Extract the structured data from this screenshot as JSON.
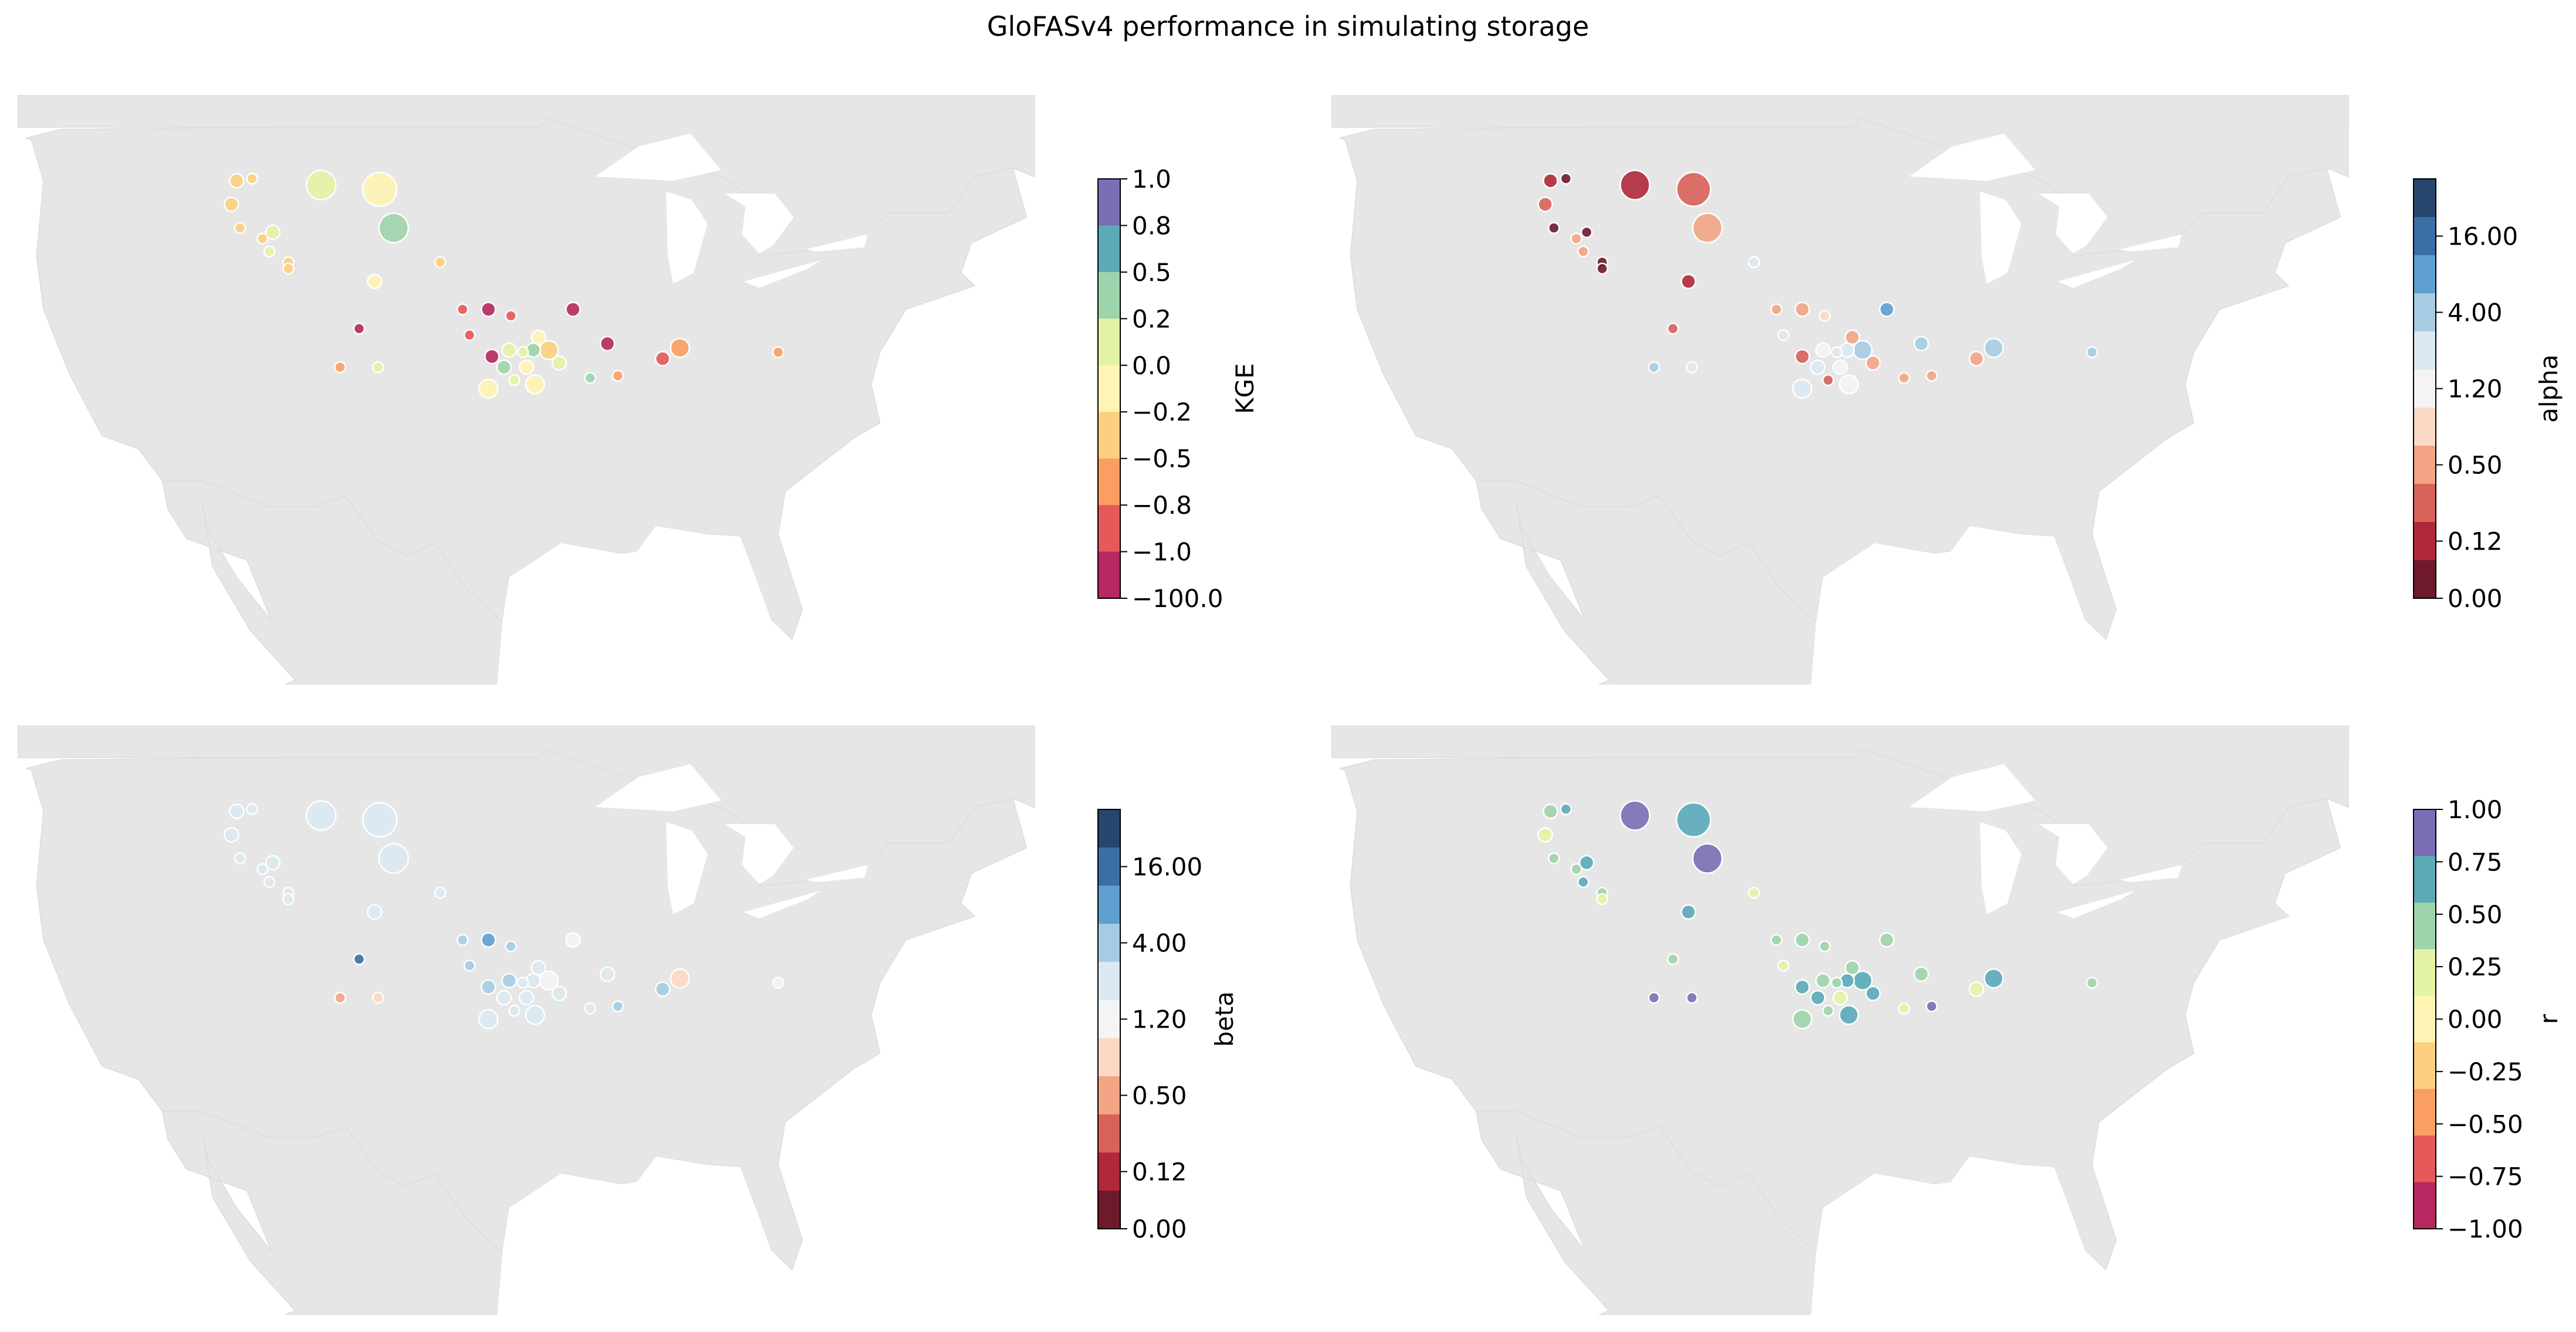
{
  "title": "GloFASv4 performance in simulating storage",
  "colors": {
    "land": "#e6e6e6",
    "water": "#ffffff",
    "marker_edge": "#ffffff"
  },
  "panels": [
    {
      "id": "kge",
      "label": "KGE",
      "ticks": [
        "1.0",
        "0.8",
        "0.5",
        "0.2",
        "0.0",
        "−0.2",
        "−0.5",
        "−0.8",
        "−1.0",
        "−100.0"
      ],
      "colors": [
        "#7b6eb6",
        "#5aaab8",
        "#9ed4ab",
        "#e3f3a5",
        "#fff4b4",
        "#fcd081",
        "#fa9e62",
        "#e6585a",
        "#b6285f"
      ],
      "points": [
        {
          "lon": -112.8,
          "lat": 46.5,
          "v": 5,
          "s": 2
        },
        {
          "lon": -111.9,
          "lat": 46.6,
          "v": 5,
          "s": 1
        },
        {
          "lon": -107.9,
          "lat": 46.3,
          "v": 3,
          "s": 6
        },
        {
          "lon": -113.1,
          "lat": 45.4,
          "v": 5,
          "s": 2
        },
        {
          "lon": -110.7,
          "lat": 44.1,
          "v": 3,
          "s": 2
        },
        {
          "lon": -112.6,
          "lat": 44.3,
          "v": 5,
          "s": 1
        },
        {
          "lon": -111.3,
          "lat": 43.8,
          "v": 5,
          "s": 1
        },
        {
          "lon": -110.9,
          "lat": 43.2,
          "v": 3,
          "s": 1
        },
        {
          "lon": -109.8,
          "lat": 42.7,
          "v": 5,
          "s": 1
        },
        {
          "lon": -109.8,
          "lat": 42.4,
          "v": 5,
          "s": 1
        },
        {
          "lon": -104.5,
          "lat": 46.1,
          "v": 4,
          "s": 7
        },
        {
          "lon": -103.7,
          "lat": 44.3,
          "v": 2,
          "s": 6
        },
        {
          "lon": -101.0,
          "lat": 42.7,
          "v": 5,
          "s": 1
        },
        {
          "lon": -104.8,
          "lat": 41.8,
          "v": 4,
          "s": 2
        },
        {
          "lon": -99.7,
          "lat": 40.5,
          "v": 7,
          "s": 1
        },
        {
          "lon": -98.2,
          "lat": 40.5,
          "v": 8,
          "s": 2
        },
        {
          "lon": -96.9,
          "lat": 40.2,
          "v": 7,
          "s": 1
        },
        {
          "lon": -93.3,
          "lat": 40.5,
          "v": 8,
          "s": 2
        },
        {
          "lon": -105.7,
          "lat": 39.6,
          "v": 8,
          "s": 1
        },
        {
          "lon": -99.3,
          "lat": 39.3,
          "v": 7,
          "s": 1
        },
        {
          "lon": -95.3,
          "lat": 39.2,
          "v": 4,
          "s": 2
        },
        {
          "lon": -91.3,
          "lat": 38.9,
          "v": 8,
          "s": 2
        },
        {
          "lon": -87.1,
          "lat": 38.7,
          "v": 6,
          "s": 3
        },
        {
          "lon": -81.4,
          "lat": 38.5,
          "v": 6,
          "s": 1
        },
        {
          "lon": -97.0,
          "lat": 38.6,
          "v": 3,
          "s": 2
        },
        {
          "lon": -95.6,
          "lat": 38.6,
          "v": 2,
          "s": 2
        },
        {
          "lon": -94.7,
          "lat": 38.6,
          "v": 5,
          "s": 3
        },
        {
          "lon": -98.0,
          "lat": 38.3,
          "v": 8,
          "s": 2
        },
        {
          "lon": -96.2,
          "lat": 38.5,
          "v": 3,
          "s": 1
        },
        {
          "lon": -94.1,
          "lat": 38.0,
          "v": 3,
          "s": 2
        },
        {
          "lon": -88.1,
          "lat": 38.2,
          "v": 7,
          "s": 2
        },
        {
          "lon": -106.8,
          "lat": 37.8,
          "v": 6,
          "s": 1
        },
        {
          "lon": -104.6,
          "lat": 37.8,
          "v": 3,
          "s": 1
        },
        {
          "lon": -97.3,
          "lat": 37.8,
          "v": 2,
          "s": 2
        },
        {
          "lon": -96.0,
          "lat": 37.8,
          "v": 4,
          "s": 2
        },
        {
          "lon": -90.7,
          "lat": 37.4,
          "v": 6,
          "s": 1
        },
        {
          "lon": -92.3,
          "lat": 37.3,
          "v": 2,
          "s": 1
        },
        {
          "lon": -96.7,
          "lat": 37.2,
          "v": 3,
          "s": 1
        },
        {
          "lon": -98.2,
          "lat": 36.8,
          "v": 4,
          "s": 3
        },
        {
          "lon": -95.5,
          "lat": 37.0,
          "v": 4,
          "s": 3
        }
      ]
    },
    {
      "id": "alpha",
      "label": "alpha",
      "ticks": [
        "16.00",
        "4.00",
        "1.20",
        "0.50",
        "0.12",
        "0.00"
      ],
      "colors": [
        "#26466d",
        "#3b6ea5",
        "#5e9fcf",
        "#a6cce3",
        "#dbe9f2",
        "#f4f4f4",
        "#fbd9c4",
        "#f2a485",
        "#d86259",
        "#b0283a",
        "#6e1a2c"
      ],
      "points": [
        {
          "lon": -112.8,
          "lat": 46.5,
          "v": 9,
          "s": 2
        },
        {
          "lon": -111.9,
          "lat": 46.6,
          "v": 10,
          "s": 1
        },
        {
          "lon": -107.9,
          "lat": 46.3,
          "v": 9,
          "s": 6
        },
        {
          "lon": -113.1,
          "lat": 45.4,
          "v": 8,
          "s": 2
        },
        {
          "lon": -110.7,
          "lat": 44.1,
          "v": 10,
          "s": 1
        },
        {
          "lon": -112.6,
          "lat": 44.3,
          "v": 10,
          "s": 1
        },
        {
          "lon": -111.3,
          "lat": 43.8,
          "v": 7,
          "s": 1
        },
        {
          "lon": -110.9,
          "lat": 43.2,
          "v": 7,
          "s": 1
        },
        {
          "lon": -109.8,
          "lat": 42.7,
          "v": 10,
          "s": 1
        },
        {
          "lon": -109.8,
          "lat": 42.4,
          "v": 10,
          "s": 1
        },
        {
          "lon": -104.5,
          "lat": 46.1,
          "v": 8,
          "s": 7
        },
        {
          "lon": -103.7,
          "lat": 44.3,
          "v": 7,
          "s": 6
        },
        {
          "lon": -101.0,
          "lat": 42.7,
          "v": 4,
          "s": 1
        },
        {
          "lon": -104.8,
          "lat": 41.8,
          "v": 9,
          "s": 2
        },
        {
          "lon": -99.7,
          "lat": 40.5,
          "v": 7,
          "s": 1
        },
        {
          "lon": -98.2,
          "lat": 40.5,
          "v": 7,
          "s": 2
        },
        {
          "lon": -96.9,
          "lat": 40.2,
          "v": 6,
          "s": 1
        },
        {
          "lon": -93.3,
          "lat": 40.5,
          "v": 2,
          "s": 2
        },
        {
          "lon": -105.7,
          "lat": 39.6,
          "v": 8,
          "s": 1
        },
        {
          "lon": -99.3,
          "lat": 39.3,
          "v": 4,
          "s": 1
        },
        {
          "lon": -95.3,
          "lat": 39.2,
          "v": 7,
          "s": 2
        },
        {
          "lon": -91.3,
          "lat": 38.9,
          "v": 3,
          "s": 2
        },
        {
          "lon": -87.1,
          "lat": 38.7,
          "v": 3,
          "s": 3
        },
        {
          "lon": -81.4,
          "lat": 38.5,
          "v": 3,
          "s": 1
        },
        {
          "lon": -97.0,
          "lat": 38.6,
          "v": 5,
          "s": 2
        },
        {
          "lon": -95.6,
          "lat": 38.6,
          "v": 4,
          "s": 2
        },
        {
          "lon": -94.7,
          "lat": 38.6,
          "v": 3,
          "s": 3
        },
        {
          "lon": -98.2,
          "lat": 38.3,
          "v": 8,
          "s": 2
        },
        {
          "lon": -96.2,
          "lat": 38.5,
          "v": 4,
          "s": 1
        },
        {
          "lon": -94.1,
          "lat": 38.0,
          "v": 7,
          "s": 2
        },
        {
          "lon": -88.1,
          "lat": 38.2,
          "v": 7,
          "s": 2
        },
        {
          "lon": -106.8,
          "lat": 37.8,
          "v": 3,
          "s": 1
        },
        {
          "lon": -104.6,
          "lat": 37.8,
          "v": 4,
          "s": 1
        },
        {
          "lon": -97.3,
          "lat": 37.8,
          "v": 4,
          "s": 2
        },
        {
          "lon": -96.0,
          "lat": 37.8,
          "v": 5,
          "s": 2
        },
        {
          "lon": -90.7,
          "lat": 37.4,
          "v": 7,
          "s": 1
        },
        {
          "lon": -92.3,
          "lat": 37.3,
          "v": 7,
          "s": 1
        },
        {
          "lon": -96.7,
          "lat": 37.2,
          "v": 8,
          "s": 1
        },
        {
          "lon": -98.2,
          "lat": 36.8,
          "v": 4,
          "s": 3
        },
        {
          "lon": -95.5,
          "lat": 37.0,
          "v": 5,
          "s": 3
        }
      ]
    },
    {
      "id": "beta",
      "label": "beta",
      "ticks": [
        "16.00",
        "4.00",
        "1.20",
        "0.50",
        "0.12",
        "0.00"
      ],
      "colors": [
        "#26466d",
        "#3b6ea5",
        "#5e9fcf",
        "#a6cce3",
        "#dbe9f2",
        "#f4f4f4",
        "#fbd9c4",
        "#f2a485",
        "#d86259",
        "#b0283a",
        "#6e1a2c"
      ],
      "points": [
        {
          "lon": -112.8,
          "lat": 46.5,
          "v": 4,
          "s": 2
        },
        {
          "lon": -111.9,
          "lat": 46.6,
          "v": 4,
          "s": 1
        },
        {
          "lon": -107.9,
          "lat": 46.3,
          "v": 4,
          "s": 6
        },
        {
          "lon": -113.1,
          "lat": 45.4,
          "v": 4,
          "s": 2
        },
        {
          "lon": -110.7,
          "lat": 44.1,
          "v": 4,
          "s": 2
        },
        {
          "lon": -112.6,
          "lat": 44.3,
          "v": 4,
          "s": 1
        },
        {
          "lon": -111.3,
          "lat": 43.8,
          "v": 4,
          "s": 1
        },
        {
          "lon": -110.9,
          "lat": 43.2,
          "v": 4,
          "s": 1
        },
        {
          "lon": -109.8,
          "lat": 42.7,
          "v": 4,
          "s": 1
        },
        {
          "lon": -109.8,
          "lat": 42.4,
          "v": 4,
          "s": 1
        },
        {
          "lon": -104.5,
          "lat": 46.1,
          "v": 4,
          "s": 7
        },
        {
          "lon": -103.7,
          "lat": 44.3,
          "v": 4,
          "s": 6
        },
        {
          "lon": -101.0,
          "lat": 42.7,
          "v": 4,
          "s": 1
        },
        {
          "lon": -104.8,
          "lat": 41.8,
          "v": 4,
          "s": 2
        },
        {
          "lon": -99.7,
          "lat": 40.5,
          "v": 3,
          "s": 1
        },
        {
          "lon": -98.2,
          "lat": 40.5,
          "v": 2,
          "s": 2
        },
        {
          "lon": -96.9,
          "lat": 40.2,
          "v": 3,
          "s": 1
        },
        {
          "lon": -93.3,
          "lat": 40.5,
          "v": 5,
          "s": 2
        },
        {
          "lon": -105.7,
          "lat": 39.6,
          "v": 1,
          "s": 1
        },
        {
          "lon": -99.3,
          "lat": 39.3,
          "v": 3,
          "s": 1
        },
        {
          "lon": -95.3,
          "lat": 39.2,
          "v": 4,
          "s": 2
        },
        {
          "lon": -91.3,
          "lat": 38.9,
          "v": 4,
          "s": 2
        },
        {
          "lon": -87.1,
          "lat": 38.7,
          "v": 6,
          "s": 3
        },
        {
          "lon": -81.4,
          "lat": 38.5,
          "v": 5,
          "s": 1
        },
        {
          "lon": -97.0,
          "lat": 38.6,
          "v": 3,
          "s": 2
        },
        {
          "lon": -95.6,
          "lat": 38.6,
          "v": 4,
          "s": 2
        },
        {
          "lon": -94.7,
          "lat": 38.6,
          "v": 5,
          "s": 3
        },
        {
          "lon": -98.2,
          "lat": 38.3,
          "v": 3,
          "s": 2
        },
        {
          "lon": -96.2,
          "lat": 38.5,
          "v": 4,
          "s": 1
        },
        {
          "lon": -94.1,
          "lat": 38.0,
          "v": 4,
          "s": 2
        },
        {
          "lon": -88.1,
          "lat": 38.2,
          "v": 3,
          "s": 2
        },
        {
          "lon": -106.8,
          "lat": 37.8,
          "v": 7,
          "s": 1
        },
        {
          "lon": -104.6,
          "lat": 37.8,
          "v": 6,
          "s": 1
        },
        {
          "lon": -97.3,
          "lat": 37.8,
          "v": 4,
          "s": 2
        },
        {
          "lon": -96.0,
          "lat": 37.8,
          "v": 4,
          "s": 2
        },
        {
          "lon": -90.7,
          "lat": 37.4,
          "v": 3,
          "s": 1
        },
        {
          "lon": -92.3,
          "lat": 37.3,
          "v": 4,
          "s": 1
        },
        {
          "lon": -96.7,
          "lat": 37.2,
          "v": 4,
          "s": 1
        },
        {
          "lon": -98.2,
          "lat": 36.8,
          "v": 4,
          "s": 3
        },
        {
          "lon": -95.5,
          "lat": 37.0,
          "v": 4,
          "s": 3
        }
      ]
    },
    {
      "id": "r",
      "label": "r",
      "ticks": [
        "1.00",
        "0.75",
        "0.50",
        "0.25",
        "0.00",
        "−0.25",
        "−0.50",
        "−0.75",
        "−1.00"
      ],
      "colors": [
        "#7b6eb6",
        "#5aaab8",
        "#9ed4ab",
        "#e3f3a5",
        "#fff4b4",
        "#fcd081",
        "#fa9e62",
        "#e6585a",
        "#b6285f"
      ],
      "points": [
        {
          "lon": -112.8,
          "lat": 46.5,
          "v": 2,
          "s": 2
        },
        {
          "lon": -111.9,
          "lat": 46.6,
          "v": 1,
          "s": 1
        },
        {
          "lon": -107.9,
          "lat": 46.3,
          "v": 0,
          "s": 6
        },
        {
          "lon": -113.1,
          "lat": 45.4,
          "v": 3,
          "s": 2
        },
        {
          "lon": -110.7,
          "lat": 44.1,
          "v": 1,
          "s": 2
        },
        {
          "lon": -112.6,
          "lat": 44.3,
          "v": 2,
          "s": 1
        },
        {
          "lon": -111.3,
          "lat": 43.8,
          "v": 2,
          "s": 1
        },
        {
          "lon": -110.9,
          "lat": 43.2,
          "v": 1,
          "s": 1
        },
        {
          "lon": -109.8,
          "lat": 42.7,
          "v": 2,
          "s": 1
        },
        {
          "lon": -109.8,
          "lat": 42.4,
          "v": 3,
          "s": 1
        },
        {
          "lon": -104.5,
          "lat": 46.1,
          "v": 1,
          "s": 7
        },
        {
          "lon": -103.7,
          "lat": 44.3,
          "v": 0,
          "s": 6
        },
        {
          "lon": -101.0,
          "lat": 42.7,
          "v": 3,
          "s": 1
        },
        {
          "lon": -104.8,
          "lat": 41.8,
          "v": 1,
          "s": 2
        },
        {
          "lon": -99.7,
          "lat": 40.5,
          "v": 2,
          "s": 1
        },
        {
          "lon": -98.2,
          "lat": 40.5,
          "v": 2,
          "s": 2
        },
        {
          "lon": -96.9,
          "lat": 40.2,
          "v": 2,
          "s": 1
        },
        {
          "lon": -93.3,
          "lat": 40.5,
          "v": 2,
          "s": 2
        },
        {
          "lon": -105.7,
          "lat": 39.6,
          "v": 2,
          "s": 1
        },
        {
          "lon": -99.3,
          "lat": 39.3,
          "v": 3,
          "s": 1
        },
        {
          "lon": -95.3,
          "lat": 39.2,
          "v": 2,
          "s": 2
        },
        {
          "lon": -91.3,
          "lat": 38.9,
          "v": 2,
          "s": 2
        },
        {
          "lon": -87.1,
          "lat": 38.7,
          "v": 1,
          "s": 3
        },
        {
          "lon": -81.4,
          "lat": 38.5,
          "v": 2,
          "s": 1
        },
        {
          "lon": -97.0,
          "lat": 38.6,
          "v": 2,
          "s": 2
        },
        {
          "lon": -95.6,
          "lat": 38.6,
          "v": 1,
          "s": 2
        },
        {
          "lon": -94.7,
          "lat": 38.6,
          "v": 1,
          "s": 3
        },
        {
          "lon": -98.2,
          "lat": 38.3,
          "v": 1,
          "s": 2
        },
        {
          "lon": -96.2,
          "lat": 38.5,
          "v": 2,
          "s": 1
        },
        {
          "lon": -94.1,
          "lat": 38.0,
          "v": 1,
          "s": 2
        },
        {
          "lon": -88.1,
          "lat": 38.2,
          "v": 3,
          "s": 2
        },
        {
          "lon": -106.8,
          "lat": 37.8,
          "v": 0,
          "s": 1
        },
        {
          "lon": -104.6,
          "lat": 37.8,
          "v": 0,
          "s": 1
        },
        {
          "lon": -97.3,
          "lat": 37.8,
          "v": 1,
          "s": 2
        },
        {
          "lon": -96.0,
          "lat": 37.8,
          "v": 3,
          "s": 2
        },
        {
          "lon": -90.7,
          "lat": 37.4,
          "v": 0,
          "s": 1
        },
        {
          "lon": -92.3,
          "lat": 37.3,
          "v": 3,
          "s": 1
        },
        {
          "lon": -96.7,
          "lat": 37.2,
          "v": 2,
          "s": 1
        },
        {
          "lon": -98.2,
          "lat": 36.8,
          "v": 2,
          "s": 3
        },
        {
          "lon": -95.5,
          "lat": 37.0,
          "v": 1,
          "s": 3
        }
      ]
    }
  ]
}
